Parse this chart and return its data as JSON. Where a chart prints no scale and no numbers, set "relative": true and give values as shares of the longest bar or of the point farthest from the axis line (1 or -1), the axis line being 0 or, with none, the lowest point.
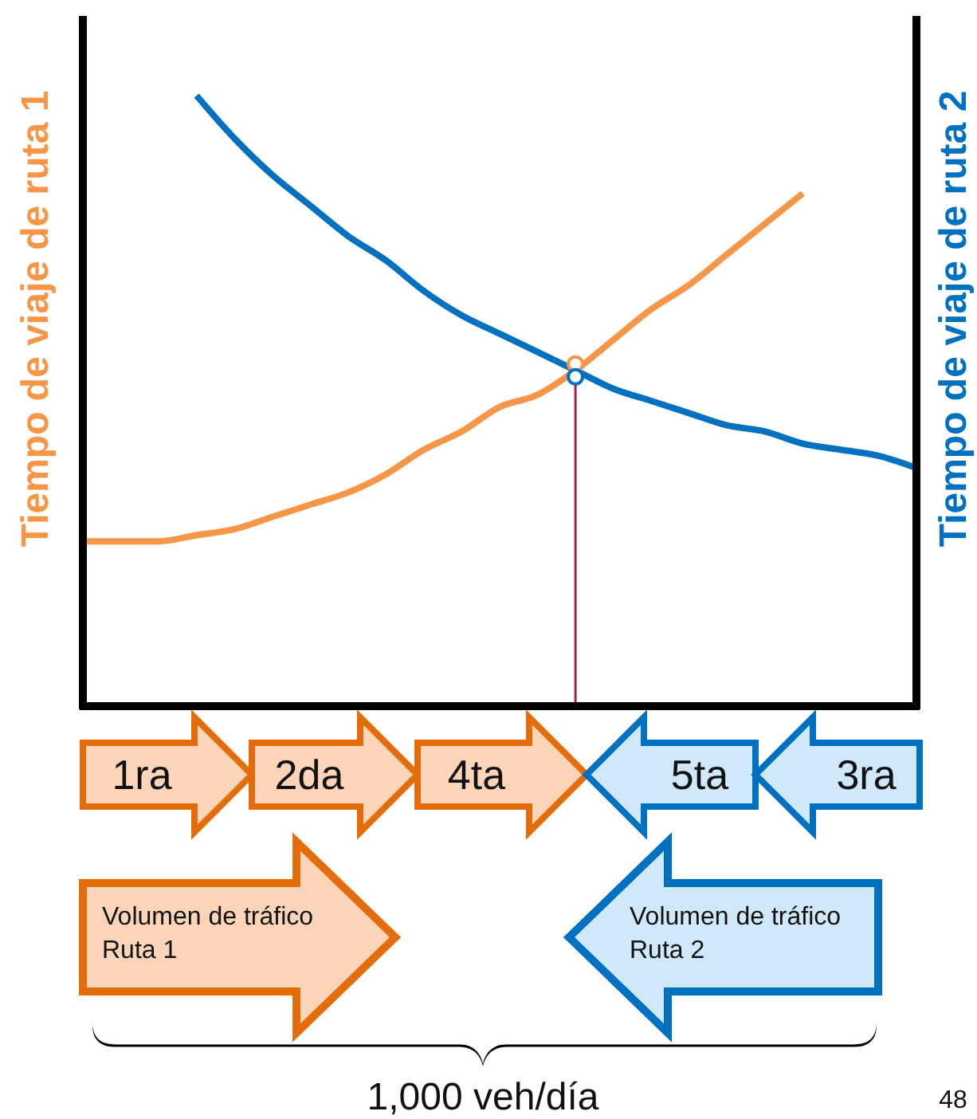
{
  "chart_data": {
    "type": "line",
    "relative": true,
    "ylabel": "Tiempo de viaje de ruta 1",
    "y2label": "Tiempo de viaje de ruta 2",
    "categories": [
      null,
      null,
      null,
      null,
      null,
      null,
      null,
      null,
      null,
      null,
      null,
      null,
      null,
      null,
      null,
      null,
      null,
      null,
      null,
      null,
      null,
      null,
      null
    ],
    "marker": "none",
    "series": [
      {
        "color": "#f79646",
        "values": [
          0.27,
          0.27,
          0.27,
          0.28,
          0.29,
          0.31,
          0.33,
          0.35,
          0.38,
          0.42,
          0.45,
          0.49,
          0.51,
          0.55,
          0.6,
          0.65,
          0.69,
          0.74,
          0.79,
          0.84,
          null,
          null,
          null
        ]
      },
      {
        "color": "#0070c0",
        "values": [
          null,
          null,
          null,
          1.0,
          0.93,
          0.87,
          0.82,
          0.77,
          0.73,
          0.68,
          0.64,
          0.61,
          0.58,
          0.55,
          0.52,
          0.5,
          0.48,
          0.46,
          0.45,
          0.43,
          0.42,
          0.41,
          0.39
        ]
      }
    ],
    "annotations": [
      "1ra",
      "2da",
      "4ta",
      "5ta",
      "3ra",
      "Volumen de tráfico\nRuta 1",
      "Volumen de tráfico\nRuta 2",
      "48",
      "1,000 veh/día"
    ]
  }
}
